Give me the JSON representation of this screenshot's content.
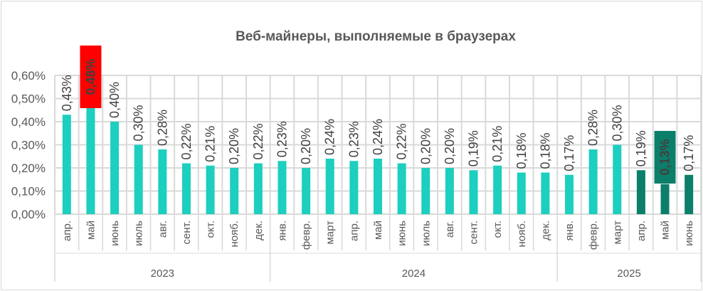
{
  "chart_data": {
    "type": "bar",
    "title": "Веб-майнеры, выполняемые в браузерах",
    "xlabel": "",
    "ylabel": "",
    "ylim": [
      0,
      0.6
    ],
    "yticks": [
      "0,00%",
      "0,10%",
      "0,20%",
      "0,30%",
      "0,40%",
      "0,50%",
      "0,60%"
    ],
    "grid": true,
    "categories": [
      "апр.",
      "май",
      "июнь",
      "июль",
      "авг.",
      "сент.",
      "окт.",
      "нояб.",
      "дек.",
      "янв.",
      "февр.",
      "март",
      "апр.",
      "май",
      "июнь",
      "июль",
      "авг.",
      "сент.",
      "окт.",
      "нояб.",
      "дек.",
      "янв.",
      "февр.",
      "март",
      "апр.",
      "май",
      "июнь"
    ],
    "years": [
      {
        "label": "2023",
        "count": 9
      },
      {
        "label": "2024",
        "count": 12
      },
      {
        "label": "2025",
        "count": 6
      }
    ],
    "values": [
      0.43,
      0.48,
      0.4,
      0.3,
      0.28,
      0.22,
      0.21,
      0.2,
      0.22,
      0.23,
      0.2,
      0.24,
      0.23,
      0.24,
      0.22,
      0.2,
      0.2,
      0.19,
      0.21,
      0.18,
      0.18,
      0.17,
      0.28,
      0.3,
      0.19,
      0.13,
      0.17
    ],
    "labels": [
      "0,43%",
      "0,48%",
      "0,40%",
      "0,30%",
      "0,28%",
      "0,22%",
      "0,21%",
      "0,20%",
      "0,22%",
      "0,23%",
      "0,20%",
      "0,24%",
      "0,23%",
      "0,24%",
      "0,22%",
      "0,20%",
      "0,20%",
      "0,19%",
      "0,21%",
      "0,18%",
      "0,18%",
      "0,17%",
      "0,28%",
      "0,30%",
      "0,19%",
      "0,13%",
      "0,17%"
    ],
    "highlights": {
      "max_index": 1,
      "min_index": 25
    },
    "colors": {
      "bar": "#1ccfbf",
      "bar_recent": "#0b7f6a",
      "max_label_bg": "#ff0000",
      "min_label_bg": "#0b7f6a",
      "grid": "#d9d9d9"
    },
    "recent_from_index": 24
  }
}
